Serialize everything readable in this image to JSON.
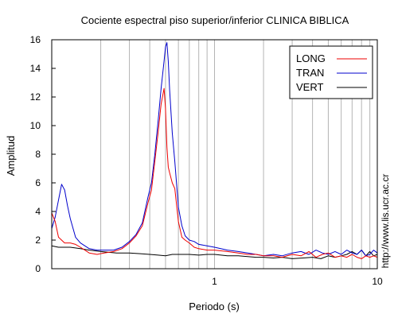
{
  "chart_data": {
    "type": "line",
    "title": "Cociente espectral piso superior/inferior  CLINICA BIBLICA",
    "xlabel": "Periodo (s)",
    "ylabel": "Amplitud",
    "x_scale": "log",
    "xlim": [
      0.1,
      10
    ],
    "ylim": [
      0,
      16
    ],
    "x_tick_labels": [
      {
        "x": 1,
        "label": "1"
      },
      {
        "x": 10,
        "label": "10"
      }
    ],
    "y_ticks": [
      0,
      2,
      4,
      6,
      8,
      10,
      12,
      14,
      16
    ],
    "grid": "vertical",
    "legend_position": "top-right",
    "watermark": "http://www.lis.ucr.ac.cr",
    "colors": {
      "LONG": "#ee0000",
      "TRAN": "#0000cc",
      "VERT": "#000000"
    },
    "series": [
      {
        "name": "LONG",
        "x": [
          0.1,
          0.105,
          0.11,
          0.12,
          0.13,
          0.14,
          0.15,
          0.17,
          0.19,
          0.21,
          0.24,
          0.27,
          0.3,
          0.33,
          0.36,
          0.39,
          0.41,
          0.43,
          0.45,
          0.47,
          0.49,
          0.5,
          0.51,
          0.52,
          0.53,
          0.55,
          0.57,
          0.6,
          0.63,
          0.66,
          0.7,
          0.75,
          0.8,
          0.9,
          1.0,
          1.2,
          1.4,
          1.6,
          1.8,
          2.0,
          2.3,
          2.6,
          3.0,
          3.4,
          3.8,
          4.2,
          4.6,
          5.0,
          5.5,
          6.0,
          6.5,
          7.0,
          7.5,
          8.0,
          8.5,
          9.0,
          9.5,
          10.0
        ],
        "y": [
          3.9,
          3.3,
          2.2,
          1.8,
          1.8,
          1.7,
          1.5,
          1.1,
          1.0,
          1.1,
          1.2,
          1.4,
          1.8,
          2.3,
          3.0,
          4.6,
          5.5,
          7.5,
          9.5,
          11.5,
          12.6,
          11.2,
          8.5,
          7.1,
          6.7,
          6.0,
          5.6,
          3.3,
          2.2,
          2.0,
          1.8,
          1.5,
          1.4,
          1.3,
          1.3,
          1.2,
          1.1,
          1.0,
          1.0,
          0.9,
          0.9,
          0.8,
          1.0,
          0.9,
          1.2,
          0.8,
          1.0,
          1.1,
          0.8,
          0.9,
          0.8,
          1.0,
          0.8,
          0.7,
          0.9,
          0.8,
          0.9,
          0.8
        ]
      },
      {
        "name": "TRAN",
        "x": [
          0.1,
          0.105,
          0.11,
          0.115,
          0.12,
          0.125,
          0.13,
          0.14,
          0.15,
          0.17,
          0.19,
          0.21,
          0.24,
          0.27,
          0.3,
          0.33,
          0.36,
          0.39,
          0.41,
          0.43,
          0.45,
          0.47,
          0.49,
          0.5,
          0.51,
          0.52,
          0.53,
          0.55,
          0.57,
          0.6,
          0.63,
          0.66,
          0.7,
          0.75,
          0.8,
          0.9,
          1.0,
          1.2,
          1.4,
          1.6,
          1.8,
          2.0,
          2.3,
          2.6,
          3.0,
          3.4,
          3.8,
          4.2,
          4.6,
          5.0,
          5.5,
          6.0,
          6.5,
          7.0,
          7.5,
          8.0,
          8.5,
          9.0,
          9.5,
          10.0
        ],
        "y": [
          2.8,
          3.6,
          4.8,
          5.9,
          5.5,
          4.4,
          3.5,
          2.2,
          1.8,
          1.4,
          1.3,
          1.3,
          1.3,
          1.5,
          1.9,
          2.4,
          3.2,
          5.0,
          6.0,
          8.0,
          10.3,
          12.6,
          14.5,
          15.5,
          15.8,
          14.5,
          12.5,
          9.5,
          7.5,
          4.3,
          3.0,
          2.3,
          2.0,
          1.9,
          1.7,
          1.6,
          1.5,
          1.3,
          1.2,
          1.1,
          1.0,
          0.9,
          1.0,
          0.9,
          1.1,
          1.2,
          1.0,
          1.3,
          1.1,
          1.0,
          1.2,
          1.0,
          1.3,
          1.1,
          1.0,
          1.3,
          0.9,
          1.0,
          1.3,
          1.1
        ]
      },
      {
        "name": "VERT",
        "x": [
          0.1,
          0.11,
          0.13,
          0.15,
          0.17,
          0.2,
          0.25,
          0.3,
          0.35,
          0.4,
          0.45,
          0.5,
          0.55,
          0.6,
          0.7,
          0.8,
          0.9,
          1.0,
          1.2,
          1.4,
          1.6,
          1.8,
          2.0,
          2.3,
          2.6,
          3.0,
          3.5,
          4.0,
          4.5,
          5.0,
          5.5,
          6.0,
          6.5,
          7.0,
          7.5,
          8.0,
          8.5,
          9.0,
          9.5,
          10.0
        ],
        "y": [
          1.6,
          1.5,
          1.5,
          1.4,
          1.3,
          1.2,
          1.1,
          1.1,
          1.05,
          1.0,
          0.95,
          0.9,
          1.0,
          1.0,
          1.0,
          0.95,
          1.0,
          1.0,
          0.9,
          0.9,
          0.85,
          0.8,
          0.8,
          0.75,
          0.8,
          0.7,
          0.75,
          0.8,
          0.7,
          0.9,
          0.8,
          0.9,
          1.0,
          1.2,
          1.0,
          1.3,
          0.9,
          1.2,
          0.9,
          1.0
        ]
      }
    ]
  }
}
